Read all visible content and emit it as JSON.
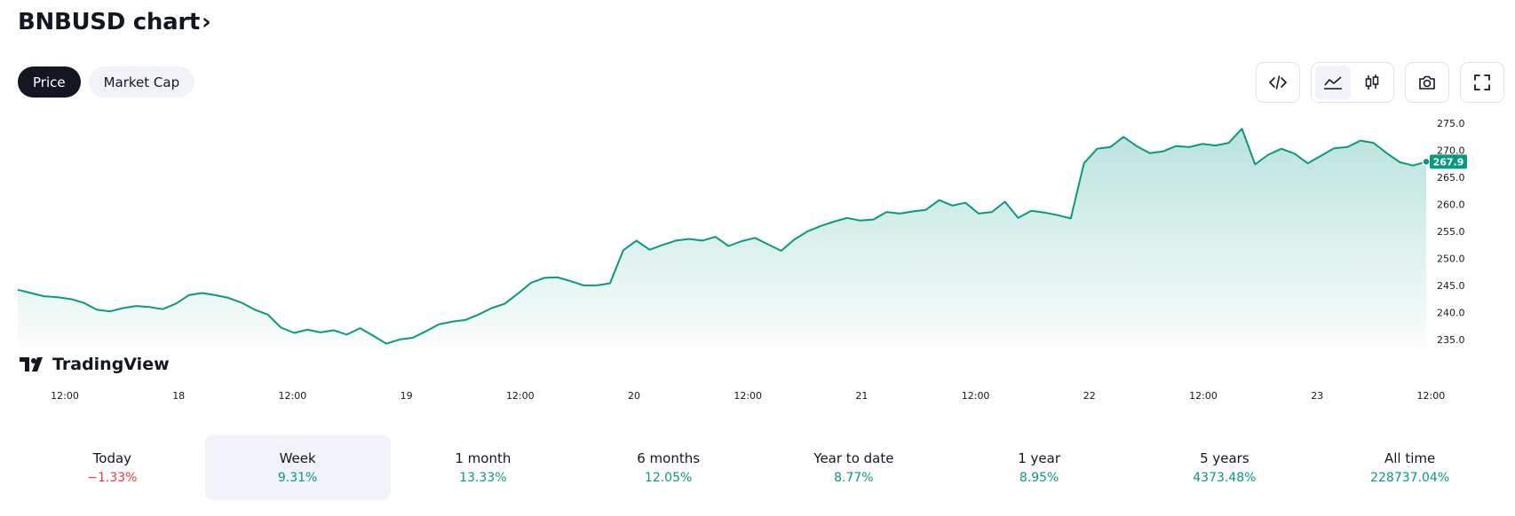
{
  "header": {
    "title": "BNBUSD chart",
    "chevron": "›"
  },
  "tabs": [
    {
      "label": "Price",
      "active": true
    },
    {
      "label": "Market Cap",
      "active": false
    }
  ],
  "toolbar": {
    "buttons": [
      "embed-code-icon",
      "area-chart-icon",
      "candlestick-icon",
      "camera-icon",
      "fullscreen-icon"
    ],
    "selected": "area-chart-icon"
  },
  "branding": {
    "logo_text": "TradingView"
  },
  "colors": {
    "line": "#089981",
    "negative": "#f23645",
    "positive": "#089981",
    "selected_bg": "#f0f3fa"
  },
  "chart_data": {
    "type": "area",
    "symbol": "BNBUSD",
    "x_tick_labels": [
      "12:00",
      "18",
      "12:00",
      "19",
      "12:00",
      "20",
      "12:00",
      "21",
      "12:00",
      "22",
      "12:00",
      "23",
      "12:00"
    ],
    "y_tick_labels": [
      "275.0",
      "270.0",
      "265.0",
      "260.0",
      "255.0",
      "250.0",
      "245.0",
      "240.0",
      "235.0"
    ],
    "ylim": [
      233.5,
      276.5
    ],
    "last_price": "267.9",
    "series": [
      {
        "values": [
          244.2,
          243.6,
          243.0,
          242.8,
          242.5,
          241.8,
          240.5,
          240.2,
          240.8,
          241.2,
          241.0,
          240.6,
          241.6,
          243.2,
          243.6,
          243.2,
          242.7,
          241.8,
          240.5,
          239.6,
          237.2,
          236.2,
          236.8,
          236.3,
          236.7,
          235.9,
          237.1,
          235.7,
          234.2,
          235.0,
          235.3,
          236.5,
          237.8,
          238.3,
          238.6,
          239.6,
          240.8,
          241.6,
          243.5,
          245.5,
          246.4,
          246.5,
          245.8,
          245.0,
          245.0,
          245.4,
          251.5,
          253.3,
          251.6,
          252.5,
          253.3,
          253.6,
          253.3,
          254.0,
          252.3,
          253.2,
          253.8,
          252.6,
          251.4,
          253.5,
          255.0,
          256.0,
          256.8,
          257.5,
          257.0,
          257.2,
          258.6,
          258.3,
          258.7,
          259.0,
          260.8,
          259.8,
          260.3,
          258.3,
          258.6,
          260.5,
          257.5,
          258.8,
          258.5,
          258.0,
          257.4,
          267.6,
          270.3,
          270.6,
          272.5,
          270.8,
          269.5,
          269.8,
          270.8,
          270.6,
          271.2,
          270.9,
          271.4,
          274.0,
          267.4,
          269.2,
          270.3,
          269.4,
          267.6,
          269.0,
          270.4,
          270.6,
          271.8,
          271.4,
          269.5,
          267.8,
          267.2,
          267.9
        ]
      }
    ]
  },
  "periods": [
    {
      "label": "Today",
      "value": "−1.33%",
      "trend": "neg",
      "selected": false
    },
    {
      "label": "Week",
      "value": "9.31%",
      "trend": "pos",
      "selected": true
    },
    {
      "label": "1 month",
      "value": "13.33%",
      "trend": "pos",
      "selected": false
    },
    {
      "label": "6 months",
      "value": "12.05%",
      "trend": "pos",
      "selected": false
    },
    {
      "label": "Year to date",
      "value": "8.77%",
      "trend": "pos",
      "selected": false
    },
    {
      "label": "1 year",
      "value": "8.95%",
      "trend": "pos",
      "selected": false
    },
    {
      "label": "5 years",
      "value": "4373.48%",
      "trend": "pos",
      "selected": false
    },
    {
      "label": "All time",
      "value": "228737.04%",
      "trend": "pos",
      "selected": false
    }
  ]
}
